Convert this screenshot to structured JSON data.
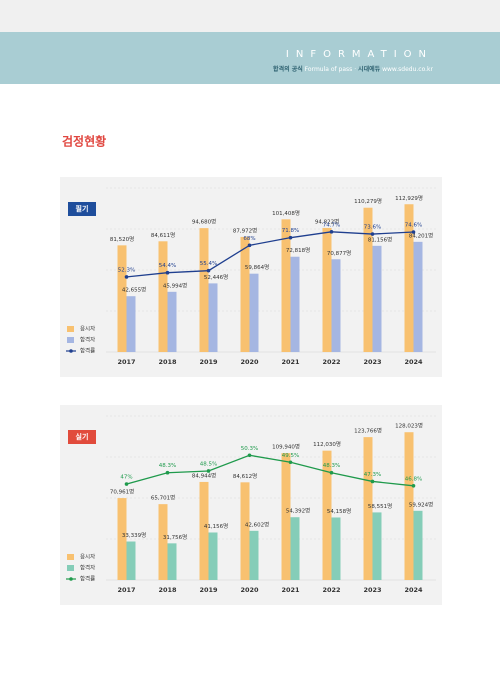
{
  "header": {
    "title": "INFORMATION",
    "brand": "합격의 공식",
    "slogan": "Formula of pass",
    "sep": "·",
    "publisher": "시대에듀",
    "url": "www.sdedu.co.kr"
  },
  "section_title": "검정현황",
  "chart_data": [
    {
      "type": "bar",
      "title": "필기",
      "categories": [
        "2017",
        "2018",
        "2019",
        "2020",
        "2021",
        "2022",
        "2023",
        "2024"
      ],
      "ylim": [
        0,
        120000
      ],
      "y2lim": [
        15,
        93
      ],
      "series": [
        {
          "name": "응시자",
          "color": "#f8c170",
          "values": [
            81520,
            84611,
            94680,
            87972,
            101408,
            94822,
            110279,
            112929
          ],
          "value_labels": [
            "81,520명",
            "84,611명",
            "94,680명",
            "87,972명",
            "101,408명",
            "94,822명",
            "110,279명",
            "112,929명"
          ]
        },
        {
          "name": "합격자",
          "color": "#a5b6e2",
          "values": [
            42655,
            45994,
            52446,
            59864,
            72818,
            70877,
            81156,
            84201
          ],
          "value_labels": [
            "42,655명",
            "45,994명",
            "52,446명",
            "59,864명",
            "72,818명",
            "70,877명",
            "81,156명",
            "84,201명"
          ]
        },
        {
          "name": "합격률",
          "color": "#1f3f8f",
          "axis": "y2",
          "values": [
            52.3,
            54.4,
            55.4,
            68,
            71.8,
            74.7,
            73.6,
            74.6
          ],
          "value_labels": [
            "52.3%",
            "54.4%",
            "55.4%",
            "68%",
            "71.8%",
            "74.7%",
            "73.6%",
            "74.6%"
          ]
        }
      ]
    },
    {
      "type": "bar",
      "title": "실기",
      "categories": [
        "2017",
        "2018",
        "2019",
        "2020",
        "2021",
        "2022",
        "2023",
        "2024"
      ],
      "ylim": [
        0,
        136000
      ],
      "y2lim": [
        36,
        54
      ],
      "series": [
        {
          "name": "응시자",
          "color": "#f8c170",
          "values": [
            70961,
            65701,
            84944,
            84612,
            109940,
            112030,
            123766,
            128023
          ],
          "value_labels": [
            "70,961명",
            "65,701명",
            "84,944명",
            "84,612명",
            "109,940명",
            "112,030명",
            "123,766명",
            "128,023명"
          ]
        },
        {
          "name": "합격자",
          "color": "#85cdb8",
          "values": [
            33339,
            31756,
            41156,
            42602,
            54392,
            54158,
            58551,
            59924
          ],
          "value_labels": [
            "33,339명",
            "31,756명",
            "41,156명",
            "42,602명",
            "54,392명",
            "54,158명",
            "58,551명",
            "59,924명"
          ]
        },
        {
          "name": "합격률",
          "color": "#1f9a4c",
          "axis": "y2",
          "values": [
            47,
            48.3,
            48.5,
            50.3,
            49.5,
            48.3,
            47.3,
            46.8
          ],
          "value_labels": [
            "47%",
            "48.3%",
            "48.5%",
            "50.3%",
            "49.5%",
            "48.3%",
            "47.3%",
            "46.8%"
          ]
        }
      ]
    }
  ]
}
